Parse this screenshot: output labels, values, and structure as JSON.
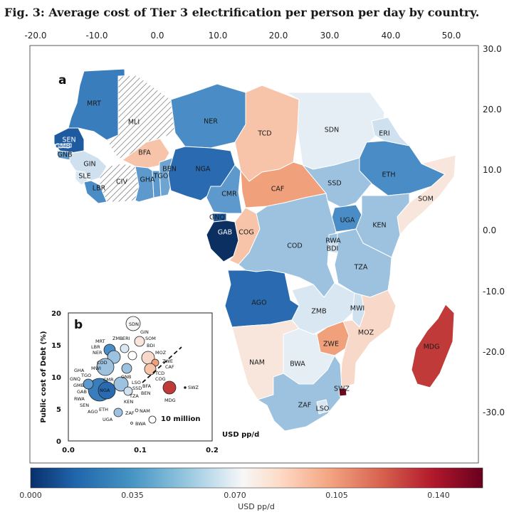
{
  "figure": {
    "title": "Fig. 3: Average cost of Tier 3 electrification per person per day by country.",
    "panel_a": "a",
    "panel_b": "b"
  },
  "axes": {
    "top_ticks": [
      "-20.0",
      "-10.0",
      "0.0",
      "10.0",
      "20.0",
      "30.0",
      "40.0",
      "50.0"
    ],
    "right_ticks": [
      "30.0",
      "20.0",
      "10.0",
      "0.0",
      "-10.0",
      "-20.0",
      "-30.0"
    ]
  },
  "colors": {
    "no_data_hatch": "#ffffff",
    "map_border": "#ffffff"
  },
  "countries": [
    {
      "code": "MRT",
      "color": "#3a7dbd"
    },
    {
      "code": "MLI",
      "color": "hatch"
    },
    {
      "code": "NER",
      "color": "#4a8cc5"
    },
    {
      "code": "TCD",
      "color": "#f7c4aa"
    },
    {
      "code": "SDN",
      "color": "#e6eef5"
    },
    {
      "code": "ERI",
      "color": "#cfe1ef"
    },
    {
      "code": "ETH",
      "color": "#4a8cc5"
    },
    {
      "code": "SOM",
      "color": "#f8e6dc"
    },
    {
      "code": "SEN",
      "color": "#1e5aa0"
    },
    {
      "code": "GMB",
      "color": "#2a6ab0"
    },
    {
      "code": "GNB",
      "color": "#5d99cc"
    },
    {
      "code": "GIN",
      "color": "#cfe1ef"
    },
    {
      "code": "SLE",
      "color": "#d9e7f2"
    },
    {
      "code": "LBR",
      "color": "#4a8cc5"
    },
    {
      "code": "CIV",
      "color": "hatch"
    },
    {
      "code": "BFA",
      "color": "#f7c4aa"
    },
    {
      "code": "GHA",
      "color": "#5d99cc"
    },
    {
      "code": "TGO",
      "color": "#5d99cc"
    },
    {
      "code": "BEN",
      "color": "#6fa4d1"
    },
    {
      "code": "NGA",
      "color": "#2a6ab0"
    },
    {
      "code": "CMR",
      "color": "#5d99cc"
    },
    {
      "code": "CAF",
      "color": "#f0a07a"
    },
    {
      "code": "SSD",
      "color": "#9cc2e0"
    },
    {
      "code": "UGA",
      "color": "#4a8cc5"
    },
    {
      "code": "KEN",
      "color": "#9cc2e0"
    },
    {
      "code": "GNQ",
      "color": "#1e5aa0"
    },
    {
      "code": "GAB",
      "color": "#0c2f61"
    },
    {
      "code": "COG",
      "color": "#f7c4aa"
    },
    {
      "code": "COD",
      "color": "#9cc2e0"
    },
    {
      "code": "RWA",
      "color": "#9cc2e0"
    },
    {
      "code": "BDI",
      "color": "#cfe1ef"
    },
    {
      "code": "TZA",
      "color": "#9cc2e0"
    },
    {
      "code": "AGO",
      "color": "#2a6ab0"
    },
    {
      "code": "ZMB",
      "color": "#d9e7f2"
    },
    {
      "code": "MWI",
      "color": "#cfe1ef"
    },
    {
      "code": "MOZ",
      "color": "#f8d8c8"
    },
    {
      "code": "ZWE",
      "color": "#f0a07a"
    },
    {
      "code": "NAM",
      "color": "#f8e6dc"
    },
    {
      "code": "BWA",
      "color": "#e6eef5"
    },
    {
      "code": "ZAF",
      "color": "#9cc2e0"
    },
    {
      "code": "LSO",
      "color": "#d9e7f2"
    },
    {
      "code": "SWZ",
      "color": "#6b0a1f"
    },
    {
      "code": "MDG",
      "color": "#c03a3a"
    }
  ],
  "inset": {
    "ylabel": "Public cost of Debt (%)",
    "xlabel": "USD pp/d",
    "y_ticks": [
      "0",
      "5",
      "10",
      "15",
      "20"
    ],
    "x_ticks": [
      "0.0",
      "0.1",
      "0.2"
    ],
    "size_legend": "10 million",
    "point_labels": [
      "SDN",
      "GIN",
      "SOM",
      "BDI",
      "MOZ",
      "ZWE",
      "CAF",
      "TCD",
      "COG",
      "MDG",
      "SWZ",
      "ZMB",
      "ERI",
      "MRT",
      "LBR",
      "NER",
      "COD",
      "MWI",
      "GHA",
      "TGO",
      "GNQ",
      "GMB",
      "GAB",
      "RWA",
      "SEN",
      "AGO",
      "ETH",
      "UGA",
      "ZAF",
      "NAM",
      "BWA",
      "KEN",
      "TZA",
      "SSD",
      "BEN",
      "BFA",
      "LSO",
      "GNB",
      "CMR",
      "NGA"
    ]
  },
  "colorbar": {
    "ticks": [
      "0.000",
      "0.035",
      "0.070",
      "0.105",
      "0.140"
    ],
    "label": "USD pp/d",
    "min": 0.0,
    "max": 0.155,
    "stops": [
      "#08306b",
      "#2166ac",
      "#4393c3",
      "#92c5de",
      "#d1e5f0",
      "#f7f7f7",
      "#fddbc7",
      "#f4a582",
      "#d6604d",
      "#b2182b",
      "#67001f"
    ]
  }
}
